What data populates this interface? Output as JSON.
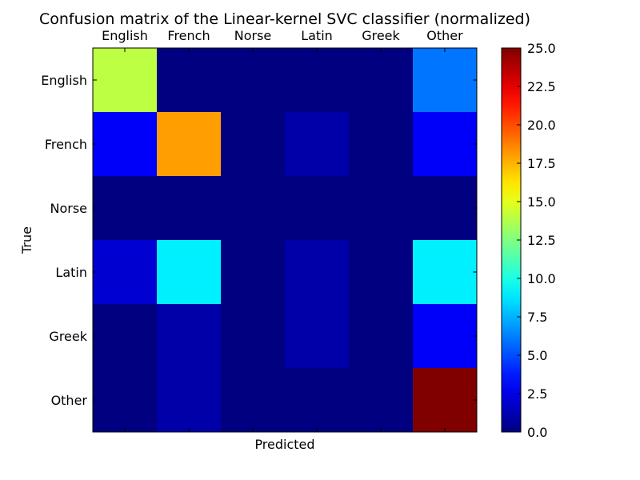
{
  "chart_data": {
    "type": "heatmap",
    "title": "Confusion matrix of the Linear-kernel SVC classifier (normalized)",
    "xlabel": "Predicted",
    "ylabel": "True",
    "x_categories": [
      "English",
      "French",
      "Norse",
      "Latin",
      "Greek",
      "Other"
    ],
    "y_categories": [
      "English",
      "French",
      "Norse",
      "Latin",
      "Greek",
      "Other"
    ],
    "values": [
      [
        14,
        0,
        0,
        0,
        0,
        6
      ],
      [
        3,
        18,
        0,
        1,
        0,
        3
      ],
      [
        0,
        0,
        0,
        0,
        0,
        0
      ],
      [
        2,
        9,
        0,
        1,
        0,
        9
      ],
      [
        0,
        1,
        0,
        1,
        0,
        3
      ],
      [
        0,
        1,
        0,
        0,
        0,
        25
      ]
    ],
    "colorbar": {
      "range": [
        0,
        25
      ],
      "ticks": [
        "0.0",
        "2.5",
        "5.0",
        "7.5",
        "10.0",
        "12.5",
        "15.0",
        "17.5",
        "20.0",
        "22.5",
        "25.0"
      ],
      "colormap": "jet"
    },
    "grid": false
  }
}
